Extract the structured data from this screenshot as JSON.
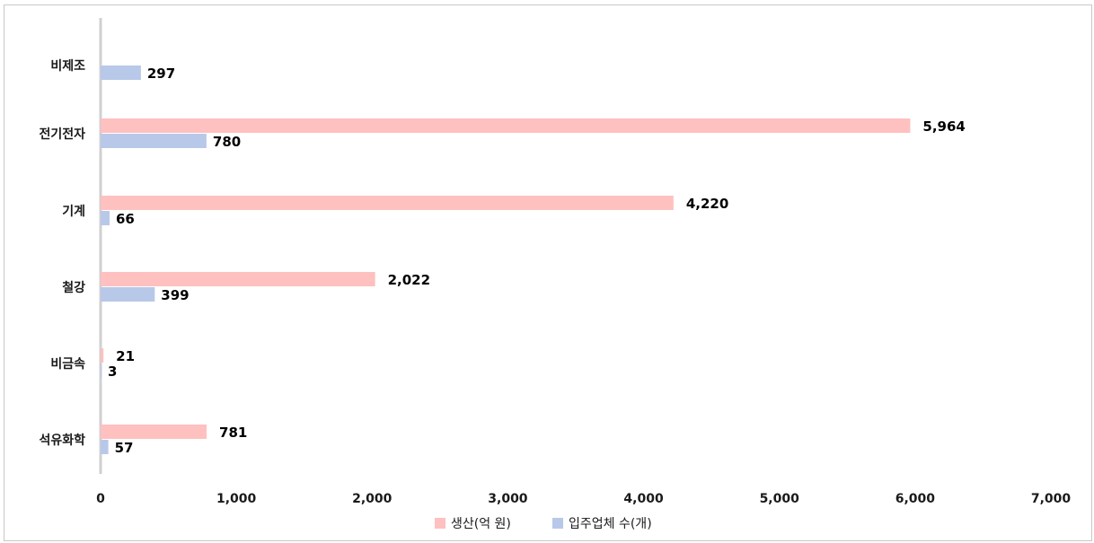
{
  "chart_data": {
    "type": "bar",
    "orientation": "horizontal",
    "title": "",
    "xlabel": "",
    "ylabel": "",
    "categories": [
      "비제조",
      "전기전자",
      "기계",
      "철강",
      "비금속",
      "석유화학"
    ],
    "series": [
      {
        "name": "생산(억 원)",
        "color": "#ffc0c0",
        "values": [
          null,
          5964,
          4220,
          2022,
          21,
          781
        ],
        "labels": [
          "",
          "5,964",
          "4,220",
          "2,022",
          "21",
          "781"
        ]
      },
      {
        "name": "입주업체 수(개)",
        "color": "#b8c8e8",
        "values": [
          297,
          780,
          66,
          399,
          3,
          57
        ],
        "labels": [
          "297",
          "780",
          "66",
          "399",
          "3",
          "57"
        ]
      }
    ],
    "xlim": [
      0,
      7000
    ],
    "xticks": [
      0,
      1000,
      2000,
      3000,
      4000,
      5000,
      6000,
      7000
    ],
    "xtick_labels": [
      "0",
      "1,000",
      "2,000",
      "3,000",
      "4,000",
      "5,000",
      "6,000",
      "7,000"
    ],
    "grid": false,
    "legend_position": "bottom",
    "axis_color": "#d0d0d0"
  }
}
